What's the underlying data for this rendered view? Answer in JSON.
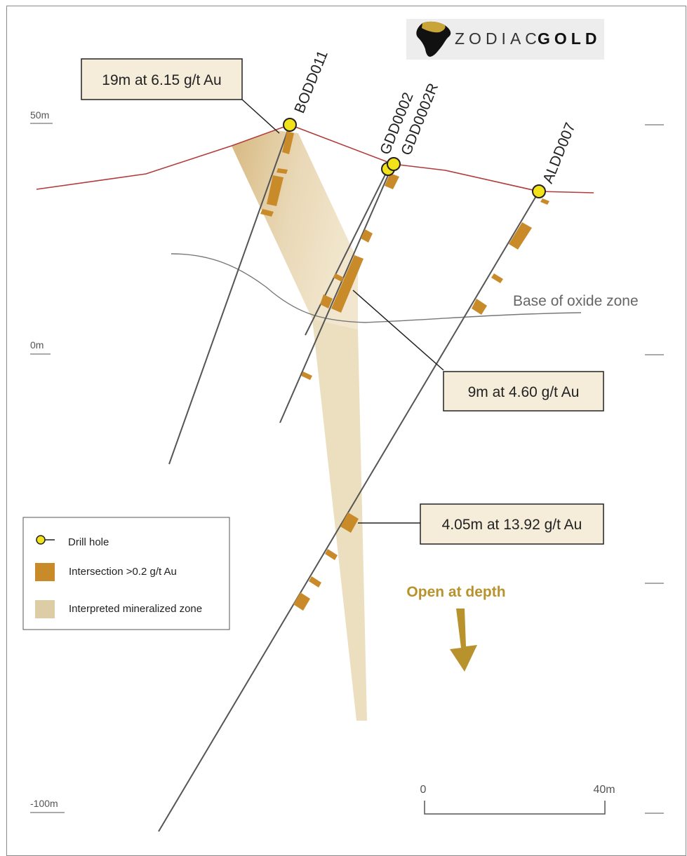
{
  "logo": {
    "word1": "ZODIAC",
    "word2": "GOLD"
  },
  "elevations": {
    "top": "50m",
    "mid": "0m",
    "bottom": "-100m"
  },
  "drill_holes": [
    {
      "id": "BODD011"
    },
    {
      "id": "GDD0002"
    },
    {
      "id": "GDD0002R"
    },
    {
      "id": "ALDD007"
    }
  ],
  "callouts": {
    "bodd011": "19m at 6.15 g/t Au",
    "gdd0002r": "9m at 4.60 g/t Au",
    "aldd007": "4.05m at 13.92 g/t Au"
  },
  "base_of_oxide_label": "Base of oxide zone",
  "open_at_depth": "Open at depth",
  "scale_bar": {
    "start": "0",
    "end": "40m"
  },
  "legend": {
    "drill_hole": "Drill hole",
    "intersection": "Intersection >0.2 g/t Au",
    "mineralized_zone": "Interpreted mineralized zone"
  },
  "colors": {
    "topography": "#b23a3a",
    "drill_trace": "#555555",
    "collar_fill": "#f2e21a",
    "intersection": "#c98b29",
    "mineralized_zone": "#d8c49a",
    "callout_bg": "#f5edda",
    "open_at_depth": "#b8922c"
  }
}
